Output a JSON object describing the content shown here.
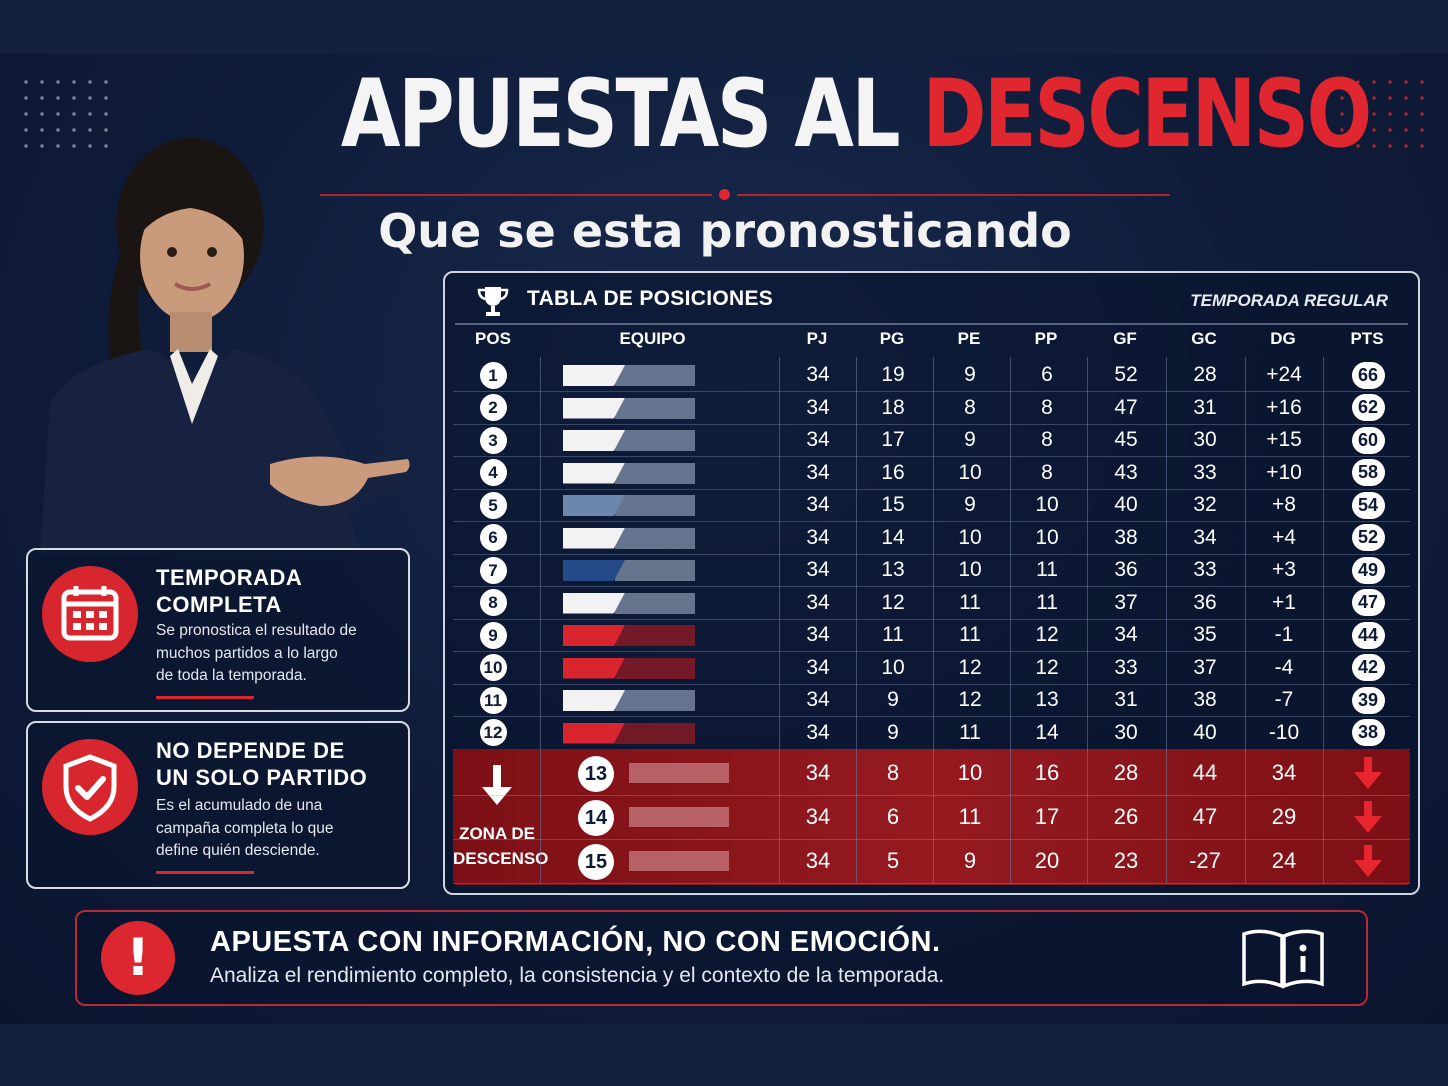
{
  "title": {
    "part1": "APUESTAS AL",
    "part2": "DESCENSO"
  },
  "subtitle": "Que se esta pronosticando",
  "cards": [
    {
      "icon": "calendar-icon",
      "title_line1": "TEMPORADA",
      "title_line2": "COMPLETA",
      "text": [
        "Se pronostica el resultado de",
        "muchos partidos a lo largo",
        "de toda la temporada."
      ]
    },
    {
      "icon": "shield-check-icon",
      "title_line1": "NO DEPENDE DE",
      "title_line2": "UN SOLO PARTIDO",
      "text": [
        "Es el acumulado de una",
        "campaña completa lo que",
        "define quién desciende."
      ]
    }
  ],
  "table": {
    "title": "TABLA DE POSICIONES",
    "season": "TEMPORADA REGULAR",
    "headers": [
      "POS",
      "EQUIPO",
      "PJ",
      "PG",
      "PE",
      "PP",
      "GF",
      "GC",
      "DG",
      "PTS"
    ],
    "rows": [
      {
        "pos": "1",
        "pj": "34",
        "pg": "19",
        "pe": "9",
        "pp": "6",
        "gf": "52",
        "gc": "28",
        "dg": "+24",
        "pts": "66",
        "color": "#f2f2f2"
      },
      {
        "pos": "2",
        "pj": "34",
        "pg": "18",
        "pe": "8",
        "pp": "8",
        "gf": "47",
        "gc": "31",
        "dg": "+16",
        "pts": "62",
        "color": "#f2f2f2"
      },
      {
        "pos": "3",
        "pj": "34",
        "pg": "17",
        "pe": "9",
        "pp": "8",
        "gf": "45",
        "gc": "30",
        "dg": "+15",
        "pts": "60",
        "color": "#f2f2f2"
      },
      {
        "pos": "4",
        "pj": "34",
        "pg": "16",
        "pe": "10",
        "pp": "8",
        "gf": "43",
        "gc": "33",
        "dg": "+10",
        "pts": "58",
        "color": "#f2f2f2"
      },
      {
        "pos": "5",
        "pj": "34",
        "pg": "15",
        "pe": "9",
        "pp": "10",
        "gf": "40",
        "gc": "32",
        "dg": "+8",
        "pts": "54",
        "color": "#6d86ad"
      },
      {
        "pos": "6",
        "pj": "34",
        "pg": "14",
        "pe": "10",
        "pp": "10",
        "gf": "38",
        "gc": "34",
        "dg": "+4",
        "pts": "52",
        "color": "#f2f2f2"
      },
      {
        "pos": "7",
        "pj": "34",
        "pg": "13",
        "pe": "10",
        "pp": "11",
        "gf": "36",
        "gc": "33",
        "dg": "+3",
        "pts": "49",
        "color": "#244a8a"
      },
      {
        "pos": "8",
        "pj": "34",
        "pg": "12",
        "pe": "11",
        "pp": "11",
        "gf": "37",
        "gc": "36",
        "dg": "+1",
        "pts": "47",
        "color": "#f2f2f2"
      },
      {
        "pos": "9",
        "pj": "34",
        "pg": "11",
        "pe": "11",
        "pp": "12",
        "gf": "34",
        "gc": "35",
        "dg": "-1",
        "pts": "44",
        "color": "#d9262e"
      },
      {
        "pos": "10",
        "pj": "34",
        "pg": "10",
        "pe": "12",
        "pp": "12",
        "gf": "33",
        "gc": "37",
        "dg": "-4",
        "pts": "42",
        "color": "#d9262e"
      },
      {
        "pos": "11",
        "pj": "34",
        "pg": "9",
        "pe": "12",
        "pp": "13",
        "gf": "31",
        "gc": "38",
        "dg": "-7",
        "pts": "39",
        "color": "#f2f2f2"
      },
      {
        "pos": "12",
        "pj": "34",
        "pg": "9",
        "pe": "11",
        "pp": "14",
        "gf": "30",
        "gc": "40",
        "dg": "-10",
        "pts": "38",
        "color": "#d9262e"
      }
    ],
    "zone": {
      "label_line1": "ZONA DE",
      "label_line2": "DESCENSO",
      "rows": [
        {
          "pos": "13",
          "pj": "34",
          "pg": "8",
          "pe": "10",
          "pp": "16",
          "gf": "28",
          "gc": "44",
          "dg": "34"
        },
        {
          "pos": "14",
          "pj": "34",
          "pg": "6",
          "pe": "11",
          "pp": "17",
          "gf": "26",
          "gc": "47",
          "dg": "29"
        },
        {
          "pos": "15",
          "pj": "34",
          "pg": "5",
          "pe": "9",
          "pp": "20",
          "gf": "23",
          "gc": "-27",
          "dg": "24"
        }
      ]
    }
  },
  "banner": {
    "heading": "APUESTA CON INFORMACIÓN, NO CON EMOCIÓN.",
    "text": "Analiza el rendimiento completo, la consistencia y el contexto de la temporada."
  },
  "colors": {
    "accent": "#e0262f",
    "navy": "#0f1c39",
    "zone": "#8a141b"
  }
}
